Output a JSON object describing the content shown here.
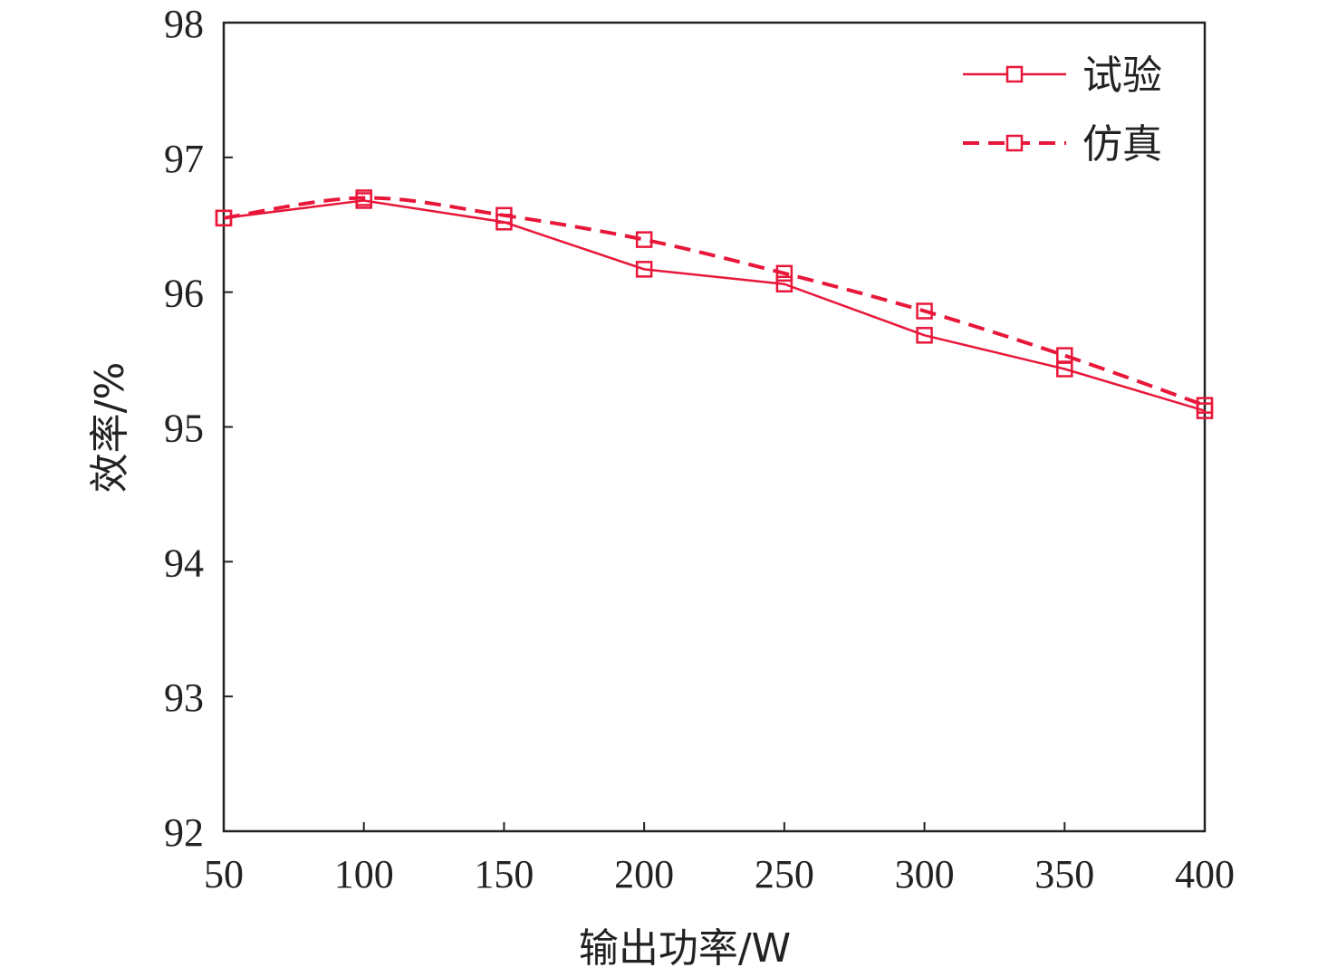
{
  "chart_data": {
    "type": "line",
    "xlabel": "输出功率/W",
    "ylabel": "效率/%",
    "xlim": [
      50,
      400
    ],
    "ylim": [
      92,
      98
    ],
    "xticks": [
      50,
      100,
      150,
      200,
      250,
      300,
      350,
      400
    ],
    "yticks": [
      92,
      93,
      94,
      95,
      96,
      97,
      98
    ],
    "grid": false,
    "legend_position": "top-right",
    "x": [
      50,
      100,
      150,
      200,
      250,
      300,
      350,
      400
    ],
    "series": [
      {
        "name": "试验",
        "values": [
          96.55,
          96.68,
          96.52,
          96.17,
          96.06,
          95.68,
          95.43,
          95.12
        ],
        "color": "#e8173a",
        "line_style": "solid",
        "smooth": false,
        "marker": "square"
      },
      {
        "name": "仿真",
        "values": [
          96.55,
          96.7,
          96.57,
          96.39,
          96.14,
          95.86,
          95.53,
          95.16
        ],
        "color": "#e8173a",
        "line_style": "dashed",
        "smooth": true,
        "marker": "square"
      }
    ]
  }
}
